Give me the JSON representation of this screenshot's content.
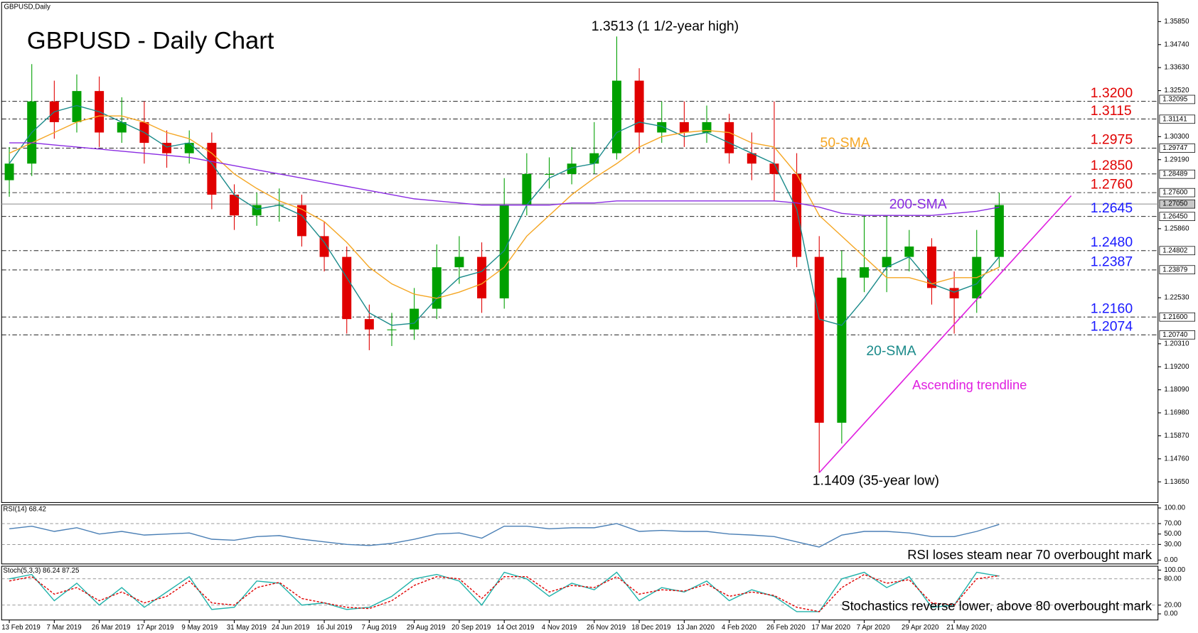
{
  "chart_data": [
    {
      "type": "candlestick",
      "title": "GBPUSD - Daily Chart",
      "subtitle": "GBPUSD,Daily",
      "categories": [
        "13 Feb 2019",
        null,
        "7 Mar 2019",
        null,
        "26 Mar 2019",
        null,
        "17 Apr 2019",
        null,
        "9 May 2019",
        null,
        "31 May 2019",
        null,
        "24 Jun 2019",
        null,
        "16 Jul 2019",
        null,
        "7 Aug 2019",
        null,
        "29 Aug 2019",
        null,
        "20 Sep 2019",
        null,
        "14 Oct 2019",
        null,
        "4 Nov 2019",
        null,
        "26 Nov 2019",
        null,
        "18 Dec 2019",
        null,
        "13 Jan 2020",
        null,
        "4 Feb 2020",
        null,
        "26 Feb 2020",
        null,
        "17 Mar 2020",
        null,
        "7 Apr 2020",
        null,
        "29 Apr 2020",
        null,
        "21 May 2020",
        null,
        null
      ],
      "open": [
        1.282,
        1.29,
        1.32,
        1.31,
        1.325,
        1.305,
        1.31,
        1.3,
        1.295,
        1.3,
        1.275,
        1.265,
        1.27,
        1.27,
        1.255,
        1.245,
        1.215,
        1.21,
        1.21,
        1.22,
        1.24,
        1.245,
        1.225,
        1.27,
        1.285,
        1.285,
        1.29,
        1.295,
        1.33,
        1.305,
        1.31,
        1.305,
        1.31,
        1.295,
        1.29,
        1.285,
        1.245,
        1.165,
        1.235,
        1.24,
        1.245,
        1.25,
        1.23,
        1.225,
        1.245
      ],
      "high": [
        1.298,
        1.338,
        1.33,
        1.333,
        1.332,
        1.322,
        1.32,
        1.306,
        1.306,
        1.305,
        1.28,
        1.276,
        1.278,
        1.275,
        1.262,
        1.25,
        1.222,
        1.218,
        1.23,
        1.251,
        1.255,
        1.252,
        1.283,
        1.295,
        1.293,
        1.298,
        1.31,
        1.3513,
        1.336,
        1.32,
        1.32,
        1.318,
        1.314,
        1.305,
        1.32,
        1.295,
        1.255,
        1.248,
        1.265,
        1.265,
        1.258,
        1.254,
        1.238,
        1.258,
        1.276
      ],
      "low": [
        1.274,
        1.284,
        1.302,
        1.305,
        1.298,
        1.3,
        1.29,
        1.288,
        1.29,
        1.268,
        1.258,
        1.26,
        1.262,
        1.25,
        1.238,
        1.208,
        1.2,
        1.202,
        1.205,
        1.215,
        1.232,
        1.218,
        1.22,
        1.265,
        1.278,
        1.28,
        1.285,
        1.292,
        1.295,
        1.3,
        1.298,
        1.3,
        1.29,
        1.282,
        1.272,
        1.24,
        1.1409,
        1.155,
        1.228,
        1.228,
        1.238,
        1.222,
        1.208,
        1.218,
        1.24
      ],
      "close": [
        1.29,
        1.32,
        1.31,
        1.325,
        1.305,
        1.31,
        1.3,
        1.295,
        1.3,
        1.275,
        1.265,
        1.27,
        1.27,
        1.255,
        1.245,
        1.215,
        1.21,
        1.21,
        1.22,
        1.24,
        1.245,
        1.225,
        1.27,
        1.285,
        1.285,
        1.29,
        1.295,
        1.33,
        1.305,
        1.31,
        1.305,
        1.31,
        1.295,
        1.29,
        1.285,
        1.245,
        1.165,
        1.235,
        1.24,
        1.245,
        1.25,
        1.23,
        1.225,
        1.245,
        1.27
      ],
      "up_color": "#00a000",
      "down_color": "#e00000",
      "series": [
        {
          "name": "20-SMA",
          "color": "#1a8a8a",
          "values": [
            1.29,
            1.305,
            1.315,
            1.318,
            1.315,
            1.31,
            1.305,
            1.298,
            1.3,
            1.29,
            1.275,
            1.268,
            1.27,
            1.265,
            1.252,
            1.235,
            1.218,
            1.212,
            1.213,
            1.225,
            1.235,
            1.238,
            1.248,
            1.27,
            1.283,
            1.288,
            1.29,
            1.305,
            1.31,
            1.308,
            1.303,
            1.305,
            1.3,
            1.295,
            1.29,
            1.268,
            1.215,
            1.212,
            1.225,
            1.24,
            1.245,
            1.232,
            1.228,
            1.232,
            1.245
          ]
        },
        {
          "name": "50-SMA",
          "color": "#f5a623",
          "values": [
            1.295,
            1.3,
            1.305,
            1.31,
            1.313,
            1.313,
            1.31,
            1.305,
            1.302,
            1.295,
            1.285,
            1.278,
            1.272,
            1.268,
            1.262,
            1.252,
            1.24,
            1.232,
            1.227,
            1.225,
            1.228,
            1.232,
            1.24,
            1.255,
            1.265,
            1.275,
            1.283,
            1.29,
            1.298,
            1.303,
            1.305,
            1.306,
            1.305,
            1.3,
            1.298,
            1.285,
            1.265,
            1.255,
            1.245,
            1.235,
            1.235,
            1.232,
            1.235,
            1.235,
            1.24
          ]
        },
        {
          "name": "200-SMA",
          "color": "#8a2be2",
          "values": [
            1.3,
            1.3,
            1.299,
            1.298,
            1.297,
            1.296,
            1.295,
            1.294,
            1.293,
            1.291,
            1.289,
            1.287,
            1.285,
            1.283,
            1.281,
            1.279,
            1.277,
            1.275,
            1.273,
            1.272,
            1.271,
            1.27,
            1.27,
            1.27,
            1.27,
            1.271,
            1.271,
            1.272,
            1.272,
            1.272,
            1.272,
            1.272,
            1.272,
            1.272,
            1.272,
            1.271,
            1.269,
            1.266,
            1.265,
            1.265,
            1.265,
            1.265,
            1.266,
            1.267,
            1.269
          ]
        }
      ],
      "ylim": [
        1.1265,
        1.3678
      ],
      "yticks": [
        {
          "value": 1.3585,
          "label": "1.35850"
        },
        {
          "value": 1.3474,
          "label": "1.34740"
        },
        {
          "value": 1.3363,
          "label": "1.33630"
        },
        {
          "value": 1.3252,
          "label": "1.32520"
        },
        {
          "value": 1.303,
          "label": "1.30300"
        },
        {
          "value": 1.2919,
          "label": "1.29190"
        },
        {
          "value": 1.2586,
          "label": "1.25860"
        },
        {
          "value": 1.2253,
          "label": "1.22530"
        },
        {
          "value": 1.2031,
          "label": "1.20310"
        },
        {
          "value": 1.192,
          "label": "1.19200"
        },
        {
          "value": 1.1809,
          "label": "1.18090"
        },
        {
          "value": 1.1698,
          "label": "1.16980"
        },
        {
          "value": 1.1587,
          "label": "1.15870"
        },
        {
          "value": 1.1476,
          "label": "1.14760"
        },
        {
          "value": 1.1365,
          "label": "1.13650"
        }
      ],
      "price_boxes": [
        {
          "value": 1.32095,
          "label": "1.32095"
        },
        {
          "value": 1.31141,
          "label": "1.31141"
        },
        {
          "value": 1.29747,
          "label": "1.29747"
        },
        {
          "value": 1.28489,
          "label": "1.28489"
        },
        {
          "value": 1.276,
          "label": "1.27600"
        },
        {
          "value": 1.2705,
          "label": "1.27050"
        },
        {
          "value": 1.2645,
          "label": "1.26450"
        },
        {
          "value": 1.24802,
          "label": "1.24802"
        },
        {
          "value": 1.23879,
          "label": "1.23879"
        },
        {
          "value": 1.216,
          "label": "1.21600"
        },
        {
          "value": 1.2074,
          "label": "1.20740"
        }
      ],
      "current_price": 1.2705,
      "levels": [
        {
          "value": 1.32,
          "label": "1.3200",
          "color": "#e00000"
        },
        {
          "value": 1.3115,
          "label": "1.3115",
          "color": "#e00000"
        },
        {
          "value": 1.2975,
          "label": "1.2975",
          "color": "#e00000"
        },
        {
          "value": 1.285,
          "label": "1.2850",
          "color": "#e00000"
        },
        {
          "value": 1.276,
          "label": "1.2760",
          "color": "#e00000"
        },
        {
          "value": 1.2645,
          "label": "1.2645",
          "color": "#1a1aff"
        },
        {
          "value": 1.248,
          "label": "1.2480",
          "color": "#1a1aff"
        },
        {
          "value": 1.2387,
          "label": "1.2387",
          "color": "#1a1aff"
        },
        {
          "value": 1.216,
          "label": "1.2160",
          "color": "#1a1aff"
        },
        {
          "value": 1.2074,
          "label": "1.2074",
          "color": "#1a1aff"
        }
      ],
      "annotations": {
        "high": "1.3513 (1 1/2-year high)",
        "low": "1.1409 (35-year low)"
      },
      "trendline": {
        "label": "Ascending trendline",
        "color": "#e020e0",
        "from": 1.1409,
        "to": 1.2745
      }
    },
    {
      "type": "line",
      "title": "RSI(14) 68.42",
      "note": "RSI loses steam near 70 overbought mark",
      "series": [
        {
          "color": "#4a7fb5",
          "values": [
            60,
            65,
            55,
            62,
            50,
            55,
            48,
            50,
            52,
            40,
            38,
            45,
            47,
            40,
            35,
            30,
            28,
            32,
            40,
            50,
            52,
            42,
            65,
            65,
            60,
            62,
            62,
            70,
            55,
            57,
            55,
            55,
            50,
            48,
            45,
            35,
            25,
            48,
            55,
            55,
            52,
            45,
            45,
            55,
            68.42
          ]
        }
      ],
      "ylim": [
        -7.4,
        105.9
      ],
      "yticks": [
        {
          "value": 100,
          "label": "100.00"
        },
        {
          "value": 70,
          "label": "70.00"
        },
        {
          "value": 50,
          "label": "50.00"
        },
        {
          "value": 30,
          "label": "30.00"
        },
        {
          "value": 0,
          "label": "0.00"
        }
      ],
      "levels": [
        70,
        30
      ]
    },
    {
      "type": "line",
      "title": "Stoch(5,3,3) 86.24 87.25",
      "note": "Stochastics reverse lower, above 80 overbought mark",
      "series": [
        {
          "color": "#20b2aa",
          "values": [
            80,
            90,
            30,
            70,
            20,
            60,
            15,
            50,
            85,
            10,
            15,
            75,
            70,
            20,
            25,
            10,
            15,
            40,
            80,
            90,
            75,
            20,
            95,
            80,
            40,
            70,
            55,
            95,
            30,
            60,
            50,
            75,
            30,
            55,
            40,
            5,
            5,
            80,
            95,
            60,
            85,
            15,
            20,
            95,
            86.24
          ]
        },
        {
          "color": "#e00000",
          "dash": true,
          "values": [
            75,
            85,
            45,
            60,
            30,
            50,
            25,
            40,
            75,
            25,
            20,
            60,
            72,
            35,
            25,
            15,
            12,
            30,
            65,
            85,
            80,
            35,
            85,
            85,
            50,
            65,
            60,
            85,
            45,
            55,
            52,
            68,
            40,
            50,
            42,
            15,
            5,
            60,
            90,
            70,
            78,
            25,
            20,
            80,
            87.25
          ]
        }
      ],
      "ylim": [
        -14,
        108.8
      ],
      "yticks": [
        {
          "value": 100,
          "label": "100.00"
        },
        {
          "value": 80,
          "label": "80.00"
        },
        {
          "value": 20,
          "label": "20.00"
        },
        {
          "value": 0,
          "label": "0.00"
        }
      ],
      "levels": [
        80,
        20
      ]
    }
  ]
}
